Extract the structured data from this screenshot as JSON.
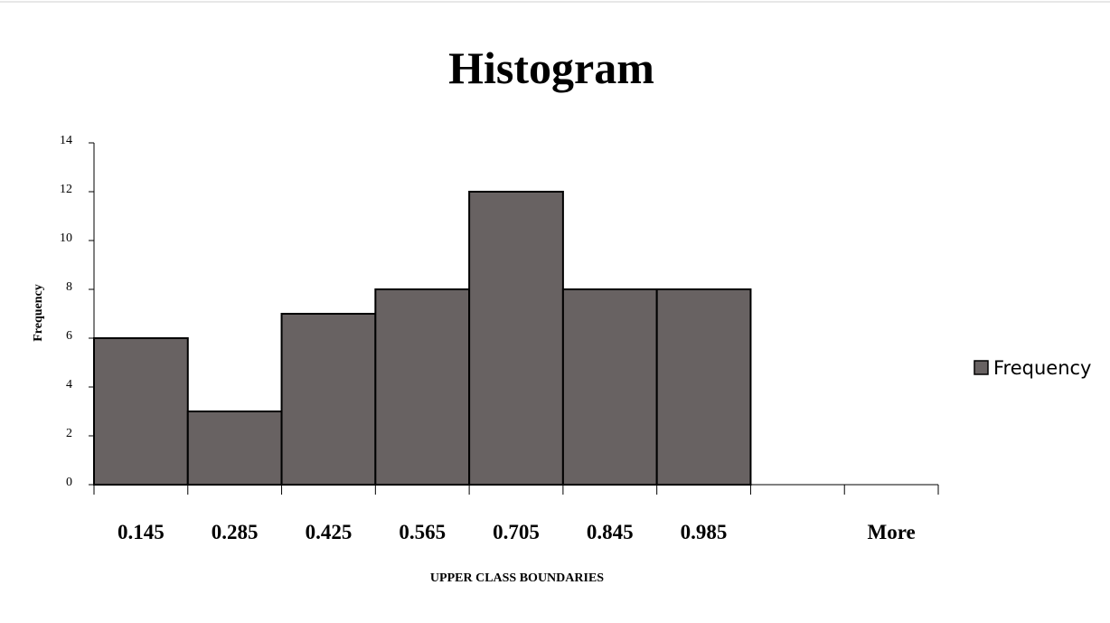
{
  "chart_data": {
    "type": "bar",
    "title": "Histogram",
    "xlabel": "UPPER CLASS BOUNDARIES",
    "ylabel": "Frequency",
    "categories": [
      "0.145",
      "0.285",
      "0.425",
      "0.565",
      "0.705",
      "0.845",
      "0.985",
      "",
      "More"
    ],
    "series": [
      {
        "name": "Frequency",
        "values": [
          6,
          3,
          7,
          8,
          12,
          8,
          8,
          0,
          0
        ]
      }
    ],
    "ylim": [
      0,
      14
    ],
    "yticks": [
      "0",
      "2",
      "4",
      "6",
      "8",
      "10",
      "12",
      "14"
    ],
    "grid": false,
    "legend": "right",
    "colors": {
      "bar_fill": "#686262",
      "bar_stroke": "#000000",
      "axis": "#000000"
    }
  }
}
